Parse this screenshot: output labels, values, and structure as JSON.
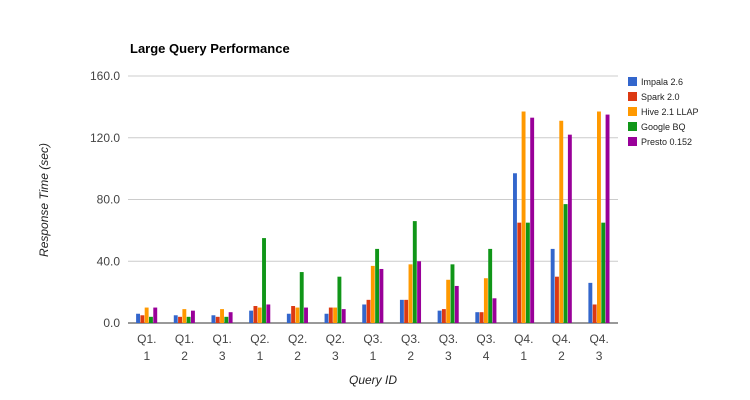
{
  "chart_data": {
    "type": "bar",
    "title": "Large Query Performance",
    "xlabel": "Query ID",
    "ylabel": "Response Time (sec)",
    "ylim": [
      0,
      160
    ],
    "yticks": [
      "0.0",
      "40.0",
      "80.0",
      "120.0",
      "160.0"
    ],
    "grid": true,
    "legend_position": "right",
    "categories": [
      [
        "Q1.",
        "1"
      ],
      [
        "Q1.",
        "2"
      ],
      [
        "Q1.",
        "3"
      ],
      [
        "Q2.",
        "1"
      ],
      [
        "Q2.",
        "2"
      ],
      [
        "Q2.",
        "3"
      ],
      [
        "Q3.",
        "1"
      ],
      [
        "Q3.",
        "2"
      ],
      [
        "Q3.",
        "3"
      ],
      [
        "Q3.",
        "4"
      ],
      [
        "Q4.",
        "1"
      ],
      [
        "Q4.",
        "2"
      ],
      [
        "Q4.",
        "3"
      ]
    ],
    "series": [
      {
        "name": "Impala 2.6",
        "color": "#3366cc",
        "values": [
          6,
          5,
          5,
          8,
          6,
          6,
          12,
          15,
          8,
          7,
          97,
          48,
          26
        ]
      },
      {
        "name": "Spark 2.0",
        "color": "#dc3912",
        "values": [
          5,
          4,
          4,
          11,
          11,
          10,
          15,
          15,
          9,
          7,
          65,
          30,
          12
        ]
      },
      {
        "name": "Hive 2.1 LLAP",
        "color": "#ff9900",
        "values": [
          10,
          9,
          9,
          10,
          10,
          10,
          37,
          38,
          28,
          29,
          137,
          131,
          137
        ]
      },
      {
        "name": "Google BQ",
        "color": "#109618",
        "values": [
          4,
          4,
          4,
          55,
          33,
          30,
          48,
          66,
          38,
          48,
          65,
          77,
          65
        ]
      },
      {
        "name": "Presto 0.152",
        "color": "#990099",
        "values": [
          10,
          8,
          7,
          12,
          10,
          9,
          35,
          40,
          24,
          16,
          133,
          122,
          135
        ]
      }
    ]
  }
}
